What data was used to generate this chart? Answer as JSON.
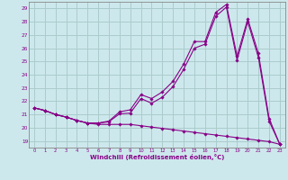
{
  "xlabel": "Windchill (Refroidissement éolien,°C)",
  "xlim": [
    -0.5,
    23.5
  ],
  "ylim": [
    18.5,
    29.5
  ],
  "xticks": [
    0,
    1,
    2,
    3,
    4,
    5,
    6,
    7,
    8,
    9,
    10,
    11,
    12,
    13,
    14,
    15,
    16,
    17,
    18,
    19,
    20,
    21,
    22,
    23
  ],
  "yticks": [
    19,
    20,
    21,
    22,
    23,
    24,
    25,
    26,
    27,
    28,
    29
  ],
  "bg_color": "#cde8ec",
  "line_color": "#880088",
  "grid_color": "#aacccc",
  "line1_x": [
    0,
    1,
    2,
    3,
    4,
    5,
    6,
    7,
    8,
    9,
    10,
    11,
    12,
    13,
    14,
    15,
    16,
    17,
    18,
    19,
    20,
    21,
    22,
    23
  ],
  "line1_y": [
    21.5,
    21.3,
    21.0,
    20.8,
    20.55,
    20.35,
    20.25,
    20.25,
    20.25,
    20.25,
    20.15,
    20.05,
    19.95,
    19.85,
    19.75,
    19.65,
    19.55,
    19.45,
    19.35,
    19.25,
    19.15,
    19.05,
    18.95,
    18.75
  ],
  "line2_x": [
    0,
    1,
    2,
    3,
    4,
    5,
    6,
    7,
    8,
    9,
    10,
    11,
    12,
    13,
    14,
    15,
    16,
    17,
    18,
    19,
    20,
    21,
    22,
    23
  ],
  "line2_y": [
    21.5,
    21.3,
    21.0,
    20.8,
    20.55,
    20.35,
    20.35,
    20.45,
    21.05,
    21.1,
    22.2,
    21.85,
    22.3,
    23.1,
    24.4,
    26.0,
    26.3,
    28.4,
    29.1,
    25.1,
    28.0,
    25.3,
    20.5,
    18.75
  ],
  "line3_x": [
    0,
    1,
    2,
    3,
    4,
    5,
    6,
    7,
    8,
    9,
    10,
    11,
    12,
    13,
    14,
    15,
    16,
    17,
    18,
    19,
    20,
    21,
    22,
    23
  ],
  "line3_y": [
    21.5,
    21.3,
    21.0,
    20.8,
    20.55,
    20.35,
    20.35,
    20.5,
    21.2,
    21.35,
    22.5,
    22.2,
    22.7,
    23.5,
    24.8,
    26.5,
    26.5,
    28.7,
    29.3,
    25.4,
    28.2,
    25.6,
    20.7,
    18.75
  ]
}
